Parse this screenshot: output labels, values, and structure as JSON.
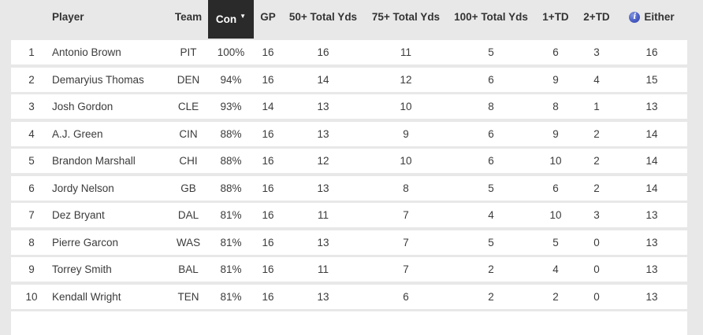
{
  "table": {
    "columns": [
      {
        "key": "rank",
        "label": ""
      },
      {
        "key": "player",
        "label": "Player"
      },
      {
        "key": "team",
        "label": "Team"
      },
      {
        "key": "con",
        "label": "Con",
        "sorted": true
      },
      {
        "key": "gp",
        "label": "GP"
      },
      {
        "key": "yds50",
        "label": "50+ Total Yds"
      },
      {
        "key": "yds75",
        "label": "75+ Total Yds"
      },
      {
        "key": "yds100",
        "label": "100+ Total Yds"
      },
      {
        "key": "td1",
        "label": "1+TD"
      },
      {
        "key": "td2",
        "label": "2+TD"
      },
      {
        "key": "either",
        "label": "Either"
      }
    ],
    "sorted_column": "Con",
    "sort_caret": "▼",
    "rows": [
      [
        "1",
        "Antonio Brown",
        "PIT",
        "100%",
        "16",
        "16",
        "11",
        "5",
        "6",
        "3",
        "16"
      ],
      [
        "2",
        "Demaryius Thomas",
        "DEN",
        "94%",
        "16",
        "14",
        "12",
        "6",
        "9",
        "4",
        "15"
      ],
      [
        "3",
        "Josh Gordon",
        "CLE",
        "93%",
        "14",
        "13",
        "10",
        "8",
        "8",
        "1",
        "13"
      ],
      [
        "4",
        "A.J. Green",
        "CIN",
        "88%",
        "16",
        "13",
        "9",
        "6",
        "9",
        "2",
        "14"
      ],
      [
        "5",
        "Brandon Marshall",
        "CHI",
        "88%",
        "16",
        "12",
        "10",
        "6",
        "10",
        "2",
        "14"
      ],
      [
        "6",
        "Jordy Nelson",
        "GB",
        "88%",
        "16",
        "13",
        "8",
        "5",
        "6",
        "2",
        "14"
      ],
      [
        "7",
        "Dez Bryant",
        "DAL",
        "81%",
        "16",
        "11",
        "7",
        "4",
        "10",
        "3",
        "13"
      ],
      [
        "8",
        "Pierre Garcon",
        "WAS",
        "81%",
        "16",
        "13",
        "7",
        "5",
        "5",
        "0",
        "13"
      ],
      [
        "9",
        "Torrey Smith",
        "BAL",
        "81%",
        "16",
        "11",
        "7",
        "2",
        "4",
        "0",
        "13"
      ],
      [
        "10",
        "Kendall Wright",
        "TEN",
        "81%",
        "16",
        "13",
        "6",
        "2",
        "2",
        "0",
        "13"
      ]
    ]
  },
  "icons": {
    "info_glyph": "i",
    "info_icon_color": "#4a5ec4"
  },
  "colors": {
    "page_background": "#e8e8e8",
    "row_background": "#ffffff",
    "sorted_header_background": "#2a2a2a",
    "sorted_header_text": "#ffffff",
    "text": "#3b3b3b",
    "header_text": "#333333"
  }
}
